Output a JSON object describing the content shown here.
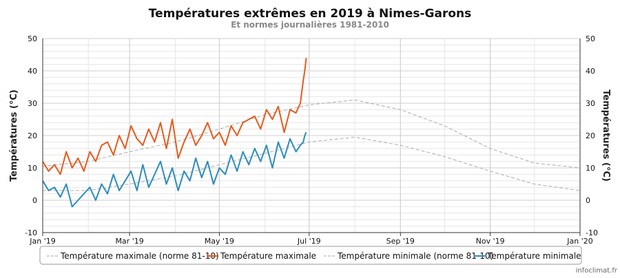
{
  "chart_data": {
    "type": "line",
    "title": "Températures extrêmes en 2019 à Nimes-Garons",
    "subtitle": "Et normes journalières 1981-2010",
    "ylabel": "Températures (°C)",
    "ylabel_right": "Températures (°C)",
    "ylim": [
      -10,
      50
    ],
    "yticks": [
      -10,
      0,
      10,
      20,
      30,
      40,
      50
    ],
    "xlim": [
      "2019-01-01",
      "2020-01-01"
    ],
    "xticks": [
      {
        "date": "2019-01-01",
        "label": "Jan '19"
      },
      {
        "date": "2019-03-01",
        "label": "Mar '19"
      },
      {
        "date": "2019-05-01",
        "label": "May '19"
      },
      {
        "date": "2019-07-01",
        "label": "Jul '19"
      },
      {
        "date": "2019-09-01",
        "label": "Sep '19"
      },
      {
        "date": "2019-11-01",
        "label": "Nov '19"
      },
      {
        "date": "2020-01-01",
        "label": "Jan '20"
      }
    ],
    "grid": true,
    "legend_position": "bottom",
    "series": [
      {
        "name": "Température maximale (norme 81-10)",
        "color": "#aaaaaa",
        "style": "dashed",
        "x": [
          "2019-01-01",
          "2019-02-01",
          "2019-03-01",
          "2019-04-01",
          "2019-05-01",
          "2019-06-01",
          "2019-07-01",
          "2019-08-01",
          "2019-09-01",
          "2019-10-01",
          "2019-11-01",
          "2019-12-01",
          "2020-01-01"
        ],
        "values": [
          10.5,
          12,
          15,
          18,
          22,
          26.5,
          29.5,
          31,
          28,
          23,
          16,
          11.5,
          10
        ]
      },
      {
        "name": "Température maximale",
        "color": "#e8591a",
        "style": "solid",
        "x": [
          "2019-01-01",
          "2019-01-05",
          "2019-01-09",
          "2019-01-13",
          "2019-01-17",
          "2019-01-21",
          "2019-01-25",
          "2019-01-29",
          "2019-02-02",
          "2019-02-06",
          "2019-02-10",
          "2019-02-14",
          "2019-02-18",
          "2019-02-22",
          "2019-02-26",
          "2019-03-02",
          "2019-03-06",
          "2019-03-10",
          "2019-03-14",
          "2019-03-18",
          "2019-03-22",
          "2019-03-26",
          "2019-03-30",
          "2019-04-03",
          "2019-04-07",
          "2019-04-11",
          "2019-04-15",
          "2019-04-19",
          "2019-04-23",
          "2019-04-27",
          "2019-05-01",
          "2019-05-05",
          "2019-05-09",
          "2019-05-13",
          "2019-05-17",
          "2019-05-21",
          "2019-05-25",
          "2019-05-29",
          "2019-06-02",
          "2019-06-06",
          "2019-06-10",
          "2019-06-14",
          "2019-06-18",
          "2019-06-22",
          "2019-06-25",
          "2019-06-27",
          "2019-06-28",
          "2019-06-29"
        ],
        "values": [
          12,
          9,
          11,
          8,
          15,
          10,
          13,
          9,
          15,
          12,
          17,
          18,
          14,
          20,
          16,
          23,
          19,
          17,
          22,
          18,
          24,
          16,
          25,
          13,
          18,
          22,
          17,
          20,
          24,
          19,
          21,
          17,
          23,
          20,
          24,
          25,
          26,
          22,
          28,
          25,
          29,
          21,
          28,
          27,
          30,
          37,
          40,
          44
        ]
      },
      {
        "name": "Température minimale (norme 81-10)",
        "color": "#aaaaaa",
        "style": "dashed",
        "x": [
          "2019-01-01",
          "2019-02-01",
          "2019-03-01",
          "2019-04-01",
          "2019-05-01",
          "2019-06-01",
          "2019-07-01",
          "2019-08-01",
          "2019-09-01",
          "2019-10-01",
          "2019-11-01",
          "2019-12-01",
          "2020-01-01"
        ],
        "values": [
          3,
          3,
          5,
          7.5,
          11,
          14.5,
          18,
          19.5,
          17,
          13.5,
          9,
          5,
          3
        ]
      },
      {
        "name": "Température minimale",
        "color": "#2b8cbe",
        "style": "solid",
        "x": [
          "2019-01-01",
          "2019-01-05",
          "2019-01-09",
          "2019-01-13",
          "2019-01-17",
          "2019-01-21",
          "2019-01-25",
          "2019-01-29",
          "2019-02-02",
          "2019-02-06",
          "2019-02-10",
          "2019-02-14",
          "2019-02-18",
          "2019-02-22",
          "2019-02-26",
          "2019-03-02",
          "2019-03-06",
          "2019-03-10",
          "2019-03-14",
          "2019-03-18",
          "2019-03-22",
          "2019-03-26",
          "2019-03-30",
          "2019-04-03",
          "2019-04-07",
          "2019-04-11",
          "2019-04-15",
          "2019-04-19",
          "2019-04-23",
          "2019-04-27",
          "2019-05-01",
          "2019-05-05",
          "2019-05-09",
          "2019-05-13",
          "2019-05-17",
          "2019-05-21",
          "2019-05-25",
          "2019-05-29",
          "2019-06-02",
          "2019-06-06",
          "2019-06-10",
          "2019-06-14",
          "2019-06-18",
          "2019-06-22",
          "2019-06-25",
          "2019-06-27",
          "2019-06-28",
          "2019-06-29"
        ],
        "values": [
          6,
          3,
          4,
          1,
          5,
          -2,
          0,
          2,
          4,
          0,
          5,
          2,
          8,
          3,
          6,
          9,
          3,
          11,
          4,
          8,
          12,
          5,
          10,
          3,
          9,
          6,
          13,
          7,
          12,
          5,
          10,
          8,
          14,
          9,
          15,
          11,
          16,
          12,
          17,
          10,
          18,
          13,
          19,
          15,
          17,
          18,
          20,
          21
        ]
      }
    ]
  },
  "credit": "infoclimat.fr"
}
